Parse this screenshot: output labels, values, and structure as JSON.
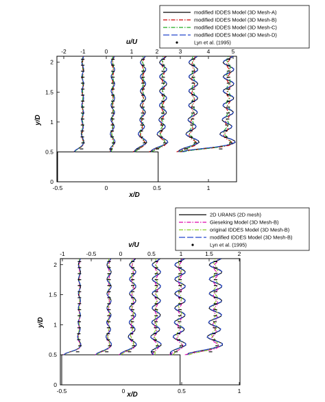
{
  "chart_data": [
    {
      "type": "line",
      "top_axis": {
        "label": "u/U",
        "ticks": [
          "-2",
          "-1",
          "0",
          "1",
          "2",
          "3",
          "4",
          "5"
        ]
      },
      "bottom_axis": {
        "label": "x/D",
        "ticks": [
          "-0.5",
          "0",
          "0.5",
          "1"
        ],
        "range": [
          -0.5,
          1.25
        ]
      },
      "y_axis": {
        "label": "y/D",
        "ticks": [
          "0",
          "0.5",
          "1",
          "1.5",
          "2"
        ],
        "range": [
          0,
          2.1
        ]
      },
      "legend_placement": "top-right",
      "legend": [
        {
          "label": "modified IDDES Model (3D Mesh-A)",
          "color": "#000000",
          "dash": "solid"
        },
        {
          "label": "modified IDDES Model (3D Mesh-B)",
          "color": "#cc0000",
          "dash": "dashdot"
        },
        {
          "label": "modified IDDES Model (3D Mesh-C)",
          "color": "#22aa22",
          "dash": "dashdot"
        },
        {
          "label": "modified IDDES Model (3D Mesh-D)",
          "color": "#2244cc",
          "dash": "longdash"
        },
        {
          "label": "Lyn et al. (1995)",
          "color": "#000000",
          "marker": "dot"
        }
      ],
      "profile_stations_xD": [
        -0.25,
        0.0,
        0.25,
        0.5,
        0.75,
        1.0
      ],
      "profile_base_xD": [
        -0.25,
        0.05,
        0.35,
        0.55,
        0.85,
        1.2
      ],
      "profile_width_xD": [
        0.03,
        0.05,
        0.13,
        0.15,
        0.18,
        0.2
      ],
      "profile_dip_xD": [
        -0.06,
        0.02,
        0.02,
        0.0,
        0.0,
        -0.3
      ],
      "body": {
        "x_range": [
          -0.5,
          0.5
        ],
        "y_range": [
          0,
          0.5
        ]
      }
    },
    {
      "type": "line",
      "top_axis": {
        "label": "v/U",
        "ticks": [
          "-1",
          "-0.5",
          "0",
          "0.5",
          "1",
          "1.5",
          "2"
        ]
      },
      "bottom_axis": {
        "label": "x/D",
        "ticks": [
          "-0.5",
          "0",
          "0.5",
          "1"
        ],
        "range": [
          -0.5,
          1.0
        ]
      },
      "y_axis": {
        "label": "y/D",
        "ticks": [
          "0",
          "0.5",
          "1",
          "1.5",
          "2"
        ],
        "range": [
          0,
          2.1
        ]
      },
      "legend_placement": "top-right",
      "legend": [
        {
          "label": "2D URANS (2D mesh)",
          "color": "#000000",
          "dash": "solid"
        },
        {
          "label": "Gieseking Model (3D Mesh-B)",
          "color": "#dd00aa",
          "dash": "dashdot"
        },
        {
          "label": "original IDDES Model (3D Mesh-B)",
          "color": "#88cc22",
          "dash": "dashdot"
        },
        {
          "label": "modified IDDES Model (3D Mesh-B)",
          "color": "#2244cc",
          "dash": "longdash"
        },
        {
          "label": "Lyn et al. (1995)",
          "color": "#000000",
          "marker": "dot"
        }
      ],
      "profile_stations_xD": [
        -0.25,
        0.0,
        0.25,
        0.5,
        0.75,
        1.0
      ],
      "profile_base_xD": [
        -0.35,
        -0.1,
        0.1,
        0.3,
        0.5,
        0.8
      ],
      "profile_width_xD": [
        0.04,
        0.05,
        0.07,
        0.08,
        0.09,
        0.11
      ],
      "profile_dip_xD": [
        -0.1,
        -0.07,
        -0.05,
        0.04,
        0.0,
        -0.15
      ],
      "body": {
        "x_range": [
          -0.5,
          0.5
        ],
        "y_range": [
          0,
          0.5
        ]
      }
    }
  ]
}
